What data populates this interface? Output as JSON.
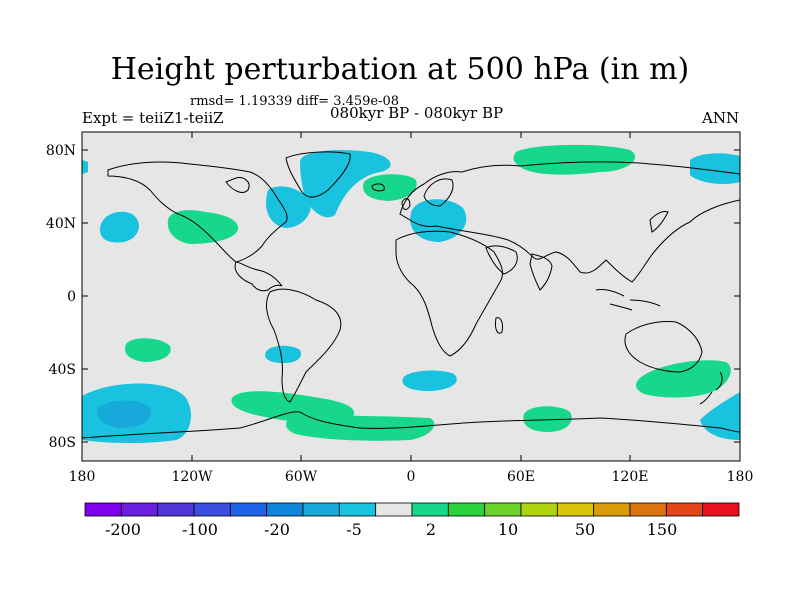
{
  "title": "Height perturbation at 500 hPa (in m)",
  "stats": "rmsd= 1.19339 diff= 3.459e-08",
  "experiment": "Expt = teiiZ1-teiiZ",
  "period": "080kyr BP - 080kyr BP",
  "season": "ANN",
  "lat_labels": [
    "80N",
    "40N",
    "0",
    "40S",
    "80S"
  ],
  "lon_labels": [
    "180",
    "120W",
    "60W",
    "0",
    "60E",
    "120E",
    "180"
  ],
  "colorbar": {
    "colors": [
      "#7f00ee",
      "#6a1fe0",
      "#5236d8",
      "#3a4de0",
      "#1f64e8",
      "#0f86dc",
      "#16a9d9",
      "#19c2de",
      "#e6e6e6",
      "#17d88a",
      "#2ad23c",
      "#6cd22a",
      "#b0d40f",
      "#d8c50a",
      "#d99d0c",
      "#dd7410",
      "#e24518",
      "#e8101c"
    ],
    "labels": [
      "-200",
      "-100",
      "-20",
      "-5",
      "2",
      "10",
      "50",
      "150"
    ]
  },
  "colors": {
    "land_background": "#e6e6e6",
    "negative": "#19c2de",
    "positive": "#17d88a",
    "strong_negative": "#16a9d9"
  }
}
